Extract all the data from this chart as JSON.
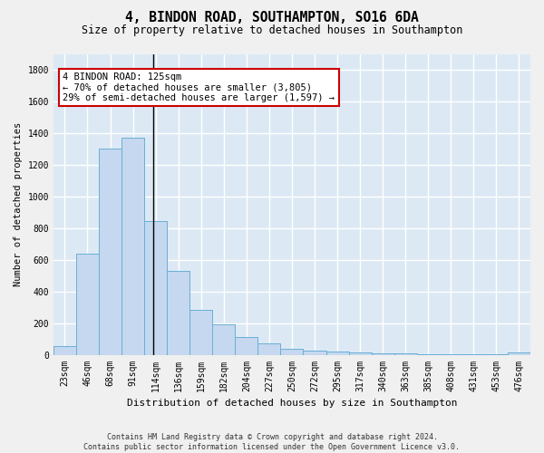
{
  "title1": "4, BINDON ROAD, SOUTHAMPTON, SO16 6DA",
  "title2": "Size of property relative to detached houses in Southampton",
  "xlabel": "Distribution of detached houses by size in Southampton",
  "ylabel": "Number of detached properties",
  "categories": [
    "23sqm",
    "46sqm",
    "68sqm",
    "91sqm",
    "114sqm",
    "136sqm",
    "159sqm",
    "182sqm",
    "204sqm",
    "227sqm",
    "250sqm",
    "272sqm",
    "295sqm",
    "317sqm",
    "340sqm",
    "363sqm",
    "385sqm",
    "408sqm",
    "431sqm",
    "453sqm",
    "476sqm"
  ],
  "bar_heights": [
    55,
    640,
    1305,
    1375,
    845,
    530,
    285,
    190,
    110,
    70,
    35,
    25,
    20,
    15,
    10,
    10,
    5,
    5,
    3,
    3,
    15
  ],
  "bar_color": "#c5d8ef",
  "bar_edge_color": "#6aaed6",
  "bg_color": "#dce9f5",
  "grid_color": "#ffffff",
  "annotation_text": "4 BINDON ROAD: 125sqm\n← 70% of detached houses are smaller (3,805)\n29% of semi-detached houses are larger (1,597) →",
  "annotation_box_color": "#ffffff",
  "annotation_box_edge_color": "#cc0000",
  "vline_index": 3.88,
  "ylim": [
    0,
    1900
  ],
  "yticks": [
    0,
    200,
    400,
    600,
    800,
    1000,
    1200,
    1400,
    1600,
    1800
  ],
  "footer": "Contains HM Land Registry data © Crown copyright and database right 2024.\nContains public sector information licensed under the Open Government Licence v3.0.",
  "title1_fontsize": 10.5,
  "title2_fontsize": 8.5,
  "ylabel_fontsize": 7.5,
  "xlabel_fontsize": 8,
  "tick_fontsize": 7,
  "footer_fontsize": 6,
  "annot_fontsize": 7.5
}
